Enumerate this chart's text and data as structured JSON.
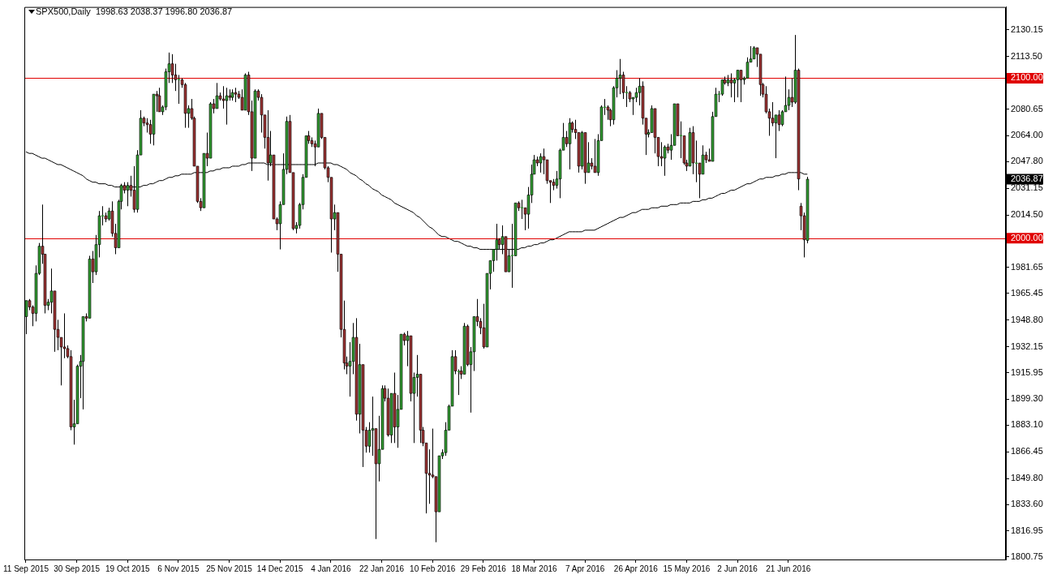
{
  "chart_data": {
    "type": "candlestick",
    "title": "SPX500,Daily  1998.63 2038.37 1996.80 2036.87",
    "categories": [
      "11 Sep 2015",
      null,
      null,
      null,
      null,
      null,
      null,
      null,
      null,
      null,
      null,
      null,
      null,
      null,
      null,
      null,
      "30 Sep 2015",
      null,
      null,
      null,
      null,
      null,
      null,
      null,
      null,
      null,
      null,
      null,
      null,
      null,
      null,
      null,
      "19 Oct 2015",
      null,
      null,
      null,
      null,
      null,
      null,
      null,
      null,
      null,
      null,
      null,
      null,
      null,
      null,
      null,
      "6 Nov 2015",
      null,
      null,
      null,
      null,
      null,
      null,
      null,
      null,
      null,
      null,
      null,
      null,
      null,
      null,
      null,
      "25 Nov 2015",
      null,
      null,
      null,
      null,
      null,
      null,
      null,
      null,
      null,
      null,
      null,
      null,
      null,
      null,
      null,
      "14 Dec 2015",
      null,
      null,
      null,
      null,
      null,
      null,
      null,
      null,
      null,
      null,
      null,
      null,
      null,
      null,
      null,
      "4 Jan 2016",
      null,
      null,
      null,
      null,
      null,
      null,
      null,
      null,
      null,
      null,
      null,
      null,
      null,
      null,
      null,
      "22 Jan 2016",
      null,
      null,
      null,
      null,
      null,
      null,
      null,
      null,
      null,
      null,
      null,
      null,
      null,
      null,
      null,
      "10 Feb 2016",
      null,
      null,
      null,
      null,
      null,
      null,
      null,
      null,
      null,
      null,
      null,
      null,
      null,
      null,
      null,
      "29 Feb 2016",
      null,
      null,
      null,
      null,
      null,
      null,
      null,
      null,
      null,
      null,
      null,
      null,
      null,
      null,
      null,
      "18 Mar 2016",
      null,
      null,
      null,
      null,
      null,
      null,
      null,
      null,
      null,
      null,
      null,
      null,
      null,
      null,
      null,
      "7 Apr 2016",
      null,
      null,
      null,
      null,
      null,
      null,
      null,
      null,
      null,
      null,
      null,
      null,
      null,
      null,
      null,
      "26 Apr 2016",
      null,
      null,
      null,
      null,
      null,
      null,
      null,
      null,
      null,
      null,
      null,
      null,
      null,
      null,
      null,
      "15 May 2016",
      null,
      null,
      null,
      null,
      null,
      null,
      null,
      null,
      null,
      null,
      null,
      null,
      null,
      null,
      null,
      "2 Jun 2016",
      null,
      null,
      null,
      null,
      null,
      null,
      null,
      null,
      null,
      null,
      null,
      null,
      null,
      null,
      null,
      "21 Jun 2016",
      null,
      null,
      null,
      null,
      null,
      null
    ],
    "ohlc": [
      [
        1951,
        1961,
        1940,
        1961
      ],
      [
        1961,
        1962,
        1955,
        1957
      ],
      [
        1957,
        1958,
        1945,
        1953
      ],
      [
        1953,
        1983,
        1948,
        1978
      ],
      [
        1978,
        1997,
        1977,
        1995
      ],
      [
        1995,
        2021,
        1984,
        1990
      ],
      [
        1990,
        1990,
        1953,
        1958
      ],
      [
        1958,
        1962,
        1955,
        1960
      ],
      [
        1960,
        1981,
        1953,
        1967
      ],
      [
        1967,
        1967,
        1929,
        1943
      ],
      [
        1943,
        1949,
        1930,
        1938
      ],
      [
        1938,
        1938,
        1908,
        1932
      ],
      [
        1932,
        1953,
        1925,
        1931
      ],
      [
        1931,
        1933,
        1925,
        1926
      ],
      [
        1926,
        1930,
        1880,
        1882
      ],
      [
        1882,
        1899,
        1871,
        1884
      ],
      [
        1884,
        1921,
        1884,
        1920
      ],
      [
        1920,
        1927,
        1900,
        1923
      ],
      [
        1923,
        1951,
        1893,
        1951
      ],
      [
        1951,
        1953,
        1948,
        1950
      ],
      [
        1950,
        1989,
        1950,
        1987
      ],
      [
        1987,
        1992,
        1972,
        1979
      ],
      [
        1979,
        2002,
        1977,
        1996
      ],
      [
        1996,
        2017,
        1988,
        2014
      ],
      [
        2014,
        2020,
        2008,
        2014
      ],
      [
        2014,
        2016,
        2010,
        2012
      ],
      [
        2012,
        2019,
        2011,
        2017
      ],
      [
        2017,
        2023,
        2001,
        2003
      ],
      [
        2003,
        2009,
        1990,
        1994
      ],
      [
        1994,
        2024,
        1994,
        2023
      ],
      [
        2023,
        2034,
        2018,
        2033
      ],
      [
        2033,
        2035,
        2028,
        2030
      ],
      [
        2030,
        2035,
        2020,
        2033
      ],
      [
        2033,
        2039,
        2026,
        2030
      ],
      [
        2030,
        2045,
        2016,
        2018
      ],
      [
        2018,
        2055,
        2016,
        2052
      ],
      [
        2052,
        2080,
        2052,
        2075
      ],
      [
        2075,
        2076,
        2070,
        2072
      ],
      [
        2072,
        2075,
        2066,
        2071
      ],
      [
        2071,
        2074,
        2059,
        2065
      ],
      [
        2065,
        2090,
        2058,
        2090
      ],
      [
        2090,
        2092,
        2079,
        2089
      ],
      [
        2089,
        2094,
        2079,
        2079
      ],
      [
        2079,
        2083,
        2077,
        2082
      ],
      [
        2082,
        2106,
        2080,
        2104
      ],
      [
        2104,
        2116,
        2097,
        2109
      ],
      [
        2109,
        2115,
        2097,
        2102
      ],
      [
        2102,
        2109,
        2092,
        2099
      ],
      [
        2099,
        2102,
        2084,
        2099
      ],
      [
        2099,
        2100,
        2094,
        2096
      ],
      [
        2096,
        2097,
        2069,
        2078
      ],
      [
        2078,
        2083,
        2069,
        2081
      ],
      [
        2081,
        2087,
        2074,
        2075
      ],
      [
        2075,
        2076,
        2045,
        2045
      ],
      [
        2045,
        2045,
        2022,
        2023
      ],
      [
        2023,
        2025,
        2017,
        2019
      ],
      [
        2019,
        2053,
        2019,
        2053
      ],
      [
        2053,
        2066,
        2045,
        2050
      ],
      [
        2050,
        2085,
        2050,
        2084
      ],
      [
        2084,
        2087,
        2078,
        2081
      ],
      [
        2081,
        2097,
        2081,
        2089
      ],
      [
        2089,
        2091,
        2086,
        2087
      ],
      [
        2087,
        2095,
        2081,
        2086
      ],
      [
        2086,
        2094,
        2071,
        2089
      ],
      [
        2089,
        2093,
        2086,
        2088
      ],
      [
        2088,
        2093,
        2086,
        2091
      ],
      [
        2091,
        2094,
        2085,
        2090
      ],
      [
        2090,
        2092,
        2087,
        2088
      ],
      [
        2088,
        2093,
        2080,
        2080
      ],
      [
        2080,
        2103,
        2080,
        2102
      ],
      [
        2102,
        2104,
        2077,
        2079
      ],
      [
        2079,
        2086,
        2042,
        2050
      ],
      [
        2050,
        2093,
        2050,
        2092
      ],
      [
        2092,
        2093,
        2086,
        2088
      ],
      [
        2088,
        2090,
        2066,
        2077
      ],
      [
        2077,
        2077,
        2056,
        2063
      ],
      [
        2063,
        2080,
        2036,
        2047
      ],
      [
        2047,
        2067,
        2045,
        2052
      ],
      [
        2052,
        2052,
        2012,
        2012
      ],
      [
        2012,
        2013,
        2005,
        2009
      ],
      [
        2009,
        2023,
        1993,
        2021
      ],
      [
        2021,
        2053,
        2021,
        2043
      ],
      [
        2043,
        2076,
        2040,
        2073
      ],
      [
        2073,
        2077,
        2041,
        2041
      ],
      [
        2041,
        2041,
        2005,
        2006
      ],
      [
        2006,
        2010,
        2003,
        2008
      ],
      [
        2008,
        2022,
        2006,
        2021
      ],
      [
        2021,
        2040,
        2018,
        2038
      ],
      [
        2038,
        2064,
        2038,
        2064
      ],
      [
        2064,
        2067,
        2059,
        2061
      ],
      [
        2061,
        2063,
        2057,
        2059
      ],
      [
        2059,
        2061,
        2045,
        2057
      ],
      [
        2057,
        2081,
        2057,
        2078
      ],
      [
        2078,
        2078,
        2062,
        2063
      ],
      [
        2063,
        2063,
        2043,
        2044
      ],
      [
        2044,
        2045,
        2035,
        2038
      ],
      [
        2038,
        2038,
        1991,
        2012
      ],
      [
        2012,
        2021,
        2005,
        2016
      ],
      [
        2016,
        2016,
        1979,
        1990
      ],
      [
        1990,
        1990,
        1938,
        1943
      ],
      [
        1943,
        1961,
        1918,
        1922
      ],
      [
        1922,
        1926,
        1915,
        1920
      ],
      [
        1920,
        1935,
        1901,
        1923
      ],
      [
        1923,
        1947,
        1915,
        1938
      ],
      [
        1938,
        1950,
        1886,
        1890
      ],
      [
        1890,
        1934,
        1878,
        1921
      ],
      [
        1921,
        1921,
        1857,
        1880
      ],
      [
        1880,
        1882,
        1866,
        1870
      ],
      [
        1870,
        1885,
        1866,
        1880
      ],
      [
        1880,
        1901,
        1864,
        1881
      ],
      [
        1881,
        1881,
        1812,
        1859
      ],
      [
        1859,
        1889,
        1848,
        1868
      ],
      [
        1868,
        1908,
        1868,
        1906
      ],
      [
        1906,
        1908,
        1898,
        1900
      ],
      [
        1900,
        1906,
        1876,
        1877
      ],
      [
        1877,
        1903,
        1872,
        1903
      ],
      [
        1903,
        1916,
        1872,
        1882
      ],
      [
        1882,
        1902,
        1869,
        1893
      ],
      [
        1893,
        1940,
        1893,
        1940
      ],
      [
        1940,
        1941,
        1933,
        1936
      ],
      [
        1936,
        1942,
        1920,
        1939
      ],
      [
        1939,
        1939,
        1898,
        1903
      ],
      [
        1903,
        1916,
        1872,
        1913
      ],
      [
        1913,
        1927,
        1901,
        1915
      ],
      [
        1915,
        1915,
        1872,
        1880
      ],
      [
        1880,
        1882,
        1870,
        1872
      ],
      [
        1872,
        1872,
        1828,
        1853
      ],
      [
        1853,
        1868,
        1834,
        1852
      ],
      [
        1852,
        1881,
        1850,
        1851
      ],
      [
        1851,
        1851,
        1810,
        1829
      ],
      [
        1829,
        1864,
        1829,
        1864
      ],
      [
        1864,
        1868,
        1862,
        1866
      ],
      [
        1866,
        1885,
        1864,
        1880
      ],
      [
        1880,
        1896,
        1880,
        1895
      ],
      [
        1895,
        1930,
        1895,
        1926
      ],
      [
        1926,
        1930,
        1915,
        1917
      ],
      [
        1917,
        1918,
        1902,
        1917
      ],
      [
        1917,
        1920,
        1912,
        1915
      ],
      [
        1915,
        1947,
        1915,
        1945
      ],
      [
        1945,
        1946,
        1920,
        1921
      ],
      [
        1921,
        1932,
        1891,
        1929
      ],
      [
        1929,
        1951,
        1917,
        1951
      ],
      [
        1951,
        1962,
        1945,
        1948
      ],
      [
        1948,
        1950,
        1940,
        1944
      ],
      [
        1944,
        1959,
        1931,
        1932
      ],
      [
        1932,
        1978,
        1932,
        1978
      ],
      [
        1978,
        1986,
        1968,
        1986
      ],
      [
        1986,
        1993,
        1979,
        1993
      ],
      [
        1993,
        2009,
        1986,
        1999
      ],
      [
        1999,
        2000,
        1993,
        1996
      ],
      [
        1996,
        2008,
        1990,
        2001
      ],
      [
        2001,
        2001,
        1979,
        1979
      ],
      [
        1979,
        1993,
        1979,
        1989
      ],
      [
        1989,
        2009,
        1969,
        1989
      ],
      [
        1989,
        2022,
        1989,
        2022
      ],
      [
        2022,
        2023,
        2017,
        2019
      ],
      [
        2019,
        2024,
        2012,
        2019
      ],
      [
        2019,
        2019,
        2005,
        2015
      ],
      [
        2015,
        2032,
        2006,
        2027
      ],
      [
        2027,
        2046,
        2022,
        2040
      ],
      [
        2040,
        2052,
        2040,
        2049
      ],
      [
        2049,
        2051,
        2045,
        2047
      ],
      [
        2047,
        2053,
        2041,
        2051
      ],
      [
        2051,
        2056,
        2040,
        2049
      ],
      [
        2049,
        2049,
        2034,
        2036
      ],
      [
        2036,
        2036,
        2022,
        2035
      ],
      [
        2035,
        2037,
        2030,
        2033
      ],
      [
        2033,
        2042,
        2031,
        2037
      ],
      [
        2037,
        2056,
        2025,
        2055
      ],
      [
        2055,
        2072,
        2055,
        2063
      ],
      [
        2063,
        2067,
        2057,
        2059
      ],
      [
        2059,
        2075,
        2043,
        2072
      ],
      [
        2072,
        2073,
        2066,
        2068
      ],
      [
        2068,
        2074,
        2062,
        2066
      ],
      [
        2066,
        2066,
        2041,
        2045
      ],
      [
        2045,
        2067,
        2043,
        2066
      ],
      [
        2066,
        2066,
        2034,
        2041
      ],
      [
        2041,
        2060,
        2041,
        2047
      ],
      [
        2047,
        2050,
        2043,
        2045
      ],
      [
        2045,
        2062,
        2041,
        2041
      ],
      [
        2041,
        2065,
        2039,
        2061
      ],
      [
        2061,
        2083,
        2061,
        2082
      ],
      [
        2082,
        2087,
        2077,
        2082
      ],
      [
        2082,
        2083,
        2074,
        2080
      ],
      [
        2080,
        2081,
        2070,
        2074
      ],
      [
        2074,
        2095,
        2071,
        2094
      ],
      [
        2094,
        2105,
        2088,
        2100
      ],
      [
        2100,
        2112,
        2090,
        2102
      ],
      [
        2102,
        2104,
        2087,
        2091
      ],
      [
        2091,
        2095,
        2082,
        2091
      ],
      [
        2091,
        2092,
        2085,
        2087
      ],
      [
        2087,
        2088,
        2077,
        2088
      ],
      [
        2088,
        2094,
        2085,
        2091
      ],
      [
        2091,
        2100,
        2083,
        2095
      ],
      [
        2095,
        2098,
        2071,
        2075
      ],
      [
        2075,
        2075,
        2052,
        2065
      ],
      [
        2065,
        2068,
        2063,
        2066
      ],
      [
        2066,
        2083,
        2066,
        2081
      ],
      [
        2081,
        2081,
        2053,
        2063
      ],
      [
        2063,
        2063,
        2045,
        2051
      ],
      [
        2051,
        2060,
        2045,
        2050
      ],
      [
        2050,
        2058,
        2039,
        2057
      ],
      [
        2057,
        2059,
        2053,
        2055
      ],
      [
        2055,
        2065,
        2049,
        2058
      ],
      [
        2058,
        2084,
        2058,
        2084
      ],
      [
        2084,
        2084,
        2064,
        2064
      ],
      [
        2064,
        2073,
        2050,
        2064
      ],
      [
        2064,
        2064,
        2046,
        2047
      ],
      [
        2047,
        2049,
        2042,
        2045
      ],
      [
        2045,
        2069,
        2045,
        2066
      ],
      [
        2066,
        2070,
        2040,
        2047
      ],
      [
        2047,
        2061,
        2035,
        2047
      ],
      [
        2047,
        2047,
        2025,
        2040
      ],
      [
        2040,
        2058,
        2040,
        2052
      ],
      [
        2052,
        2054,
        2047,
        2049
      ],
      [
        2049,
        2056,
        2048,
        2048
      ],
      [
        2048,
        2079,
        2048,
        2076
      ],
      [
        2076,
        2094,
        2076,
        2090
      ],
      [
        2090,
        2092,
        2085,
        2090
      ],
      [
        2090,
        2099,
        2089,
        2099
      ],
      [
        2099,
        2101,
        2096,
        2097
      ],
      [
        2097,
        2102,
        2095,
        2099
      ],
      [
        2099,
        2103,
        2088,
        2097
      ],
      [
        2097,
        2100,
        2085,
        2099
      ],
      [
        2099,
        2105,
        2088,
        2105
      ],
      [
        2105,
        2105,
        2085,
        2099
      ],
      [
        2099,
        2101,
        2096,
        2100
      ],
      [
        2100,
        2113,
        2100,
        2110
      ],
      [
        2110,
        2120,
        2110,
        2112
      ],
      [
        2112,
        2120,
        2112,
        2119
      ],
      [
        2119,
        2119,
        2107,
        2115
      ],
      [
        2115,
        2115,
        2089,
        2096
      ],
      [
        2096,
        2097,
        2088,
        2090
      ],
      [
        2090,
        2095,
        2078,
        2079
      ],
      [
        2079,
        2081,
        2064,
        2075
      ],
      [
        2075,
        2085,
        2070,
        2072
      ],
      [
        2072,
        2077,
        2050,
        2077
      ],
      [
        2077,
        2080,
        2067,
        2071
      ],
      [
        2071,
        2080,
        2070,
        2079
      ],
      [
        2079,
        2101,
        2079,
        2083
      ],
      [
        2083,
        2093,
        2080,
        2088
      ],
      [
        2088,
        2100,
        2082,
        2085
      ],
      [
        2085,
        2127,
        2084,
        2105
      ],
      [
        2105,
        2106,
        2030,
        2037
      ],
      [
        2020,
        2022,
        2005,
        2014
      ],
      [
        2014,
        2016,
        1988,
        1999
      ],
      [
        1998.63,
        2038.37,
        1996.8,
        2036.87
      ]
    ],
    "colors": [
      "#339933",
      "#993333",
      "#993333",
      "#339933",
      "#339933",
      "#993333",
      "#993333",
      "#339933",
      "#339933",
      "#993333",
      "#993333",
      "#993333",
      "#993333",
      "#993333",
      "#993333",
      "#339933",
      "#339933",
      "#339933",
      "#339933",
      "#993333",
      "#339933",
      "#993333",
      "#339933",
      "#339933",
      "#339933",
      "#993333",
      "#339933",
      "#993333",
      "#993333",
      "#339933",
      "#339933",
      "#993333",
      "#339933",
      "#993333",
      "#993333",
      "#339933",
      "#339933",
      "#993333",
      "#993333",
      "#993333",
      "#339933",
      "#993333",
      "#993333",
      "#339933",
      "#339933",
      "#339933",
      "#993333",
      "#993333",
      "#339933",
      "#993333",
      "#993333",
      "#339933",
      "#993333",
      "#993333",
      "#993333",
      "#993333",
      "#339933",
      "#993333",
      "#339933",
      "#993333",
      "#339933",
      "#993333",
      "#993333",
      "#339933",
      "#993333",
      "#339933",
      "#993333",
      "#993333",
      "#993333",
      "#339933",
      "#993333",
      "#993333",
      "#339933",
      "#993333",
      "#993333",
      "#993333",
      "#993333",
      "#339933",
      "#993333",
      "#993333",
      "#339933",
      "#339933",
      "#339933",
      "#993333",
      "#993333",
      "#339933",
      "#339933",
      "#339933",
      "#339933",
      "#993333",
      "#993333",
      "#993333",
      "#339933",
      "#993333",
      "#993333",
      "#993333",
      "#993333",
      "#339933",
      "#993333",
      "#993333",
      "#993333",
      "#993333",
      "#339933",
      "#339933",
      "#993333",
      "#339933",
      "#993333",
      "#993333",
      "#339933",
      "#339933",
      "#993333",
      "#339933",
      "#339933",
      "#993333",
      "#993333",
      "#339933",
      "#993333",
      "#339933",
      "#339933",
      "#993333",
      "#339933",
      "#993333",
      "#339933",
      "#339933",
      "#993333",
      "#993333",
      "#993333",
      "#993333",
      "#993333",
      "#993333",
      "#339933",
      "#339933",
      "#339933",
      "#339933",
      "#339933",
      "#993333",
      "#339933",
      "#993333",
      "#339933",
      "#993333",
      "#339933",
      "#339933",
      "#993333",
      "#993333",
      "#993333",
      "#339933",
      "#339933",
      "#339933",
      "#339933",
      "#993333",
      "#339933",
      "#993333",
      "#339933",
      "#339933",
      "#339933",
      "#993333",
      "#339933",
      "#993333",
      "#339933",
      "#339933",
      "#339933",
      "#993333",
      "#339933",
      "#993333",
      "#993333",
      "#993333",
      "#993333",
      "#339933",
      "#339933",
      "#339933",
      "#993333",
      "#339933",
      "#993333",
      "#993333",
      "#993333",
      "#339933",
      "#993333",
      "#339933",
      "#993333",
      "#993333",
      "#339933",
      "#339933",
      "#339933",
      "#993333",
      "#993333",
      "#339933",
      "#339933",
      "#339933",
      "#993333",
      "#339933",
      "#993333",
      "#339933",
      "#339933",
      "#339933",
      "#993333",
      "#993333",
      "#339933",
      "#339933",
      "#993333",
      "#993333",
      "#993333",
      "#339933",
      "#993333",
      "#339933",
      "#339933",
      "#993333",
      "#339933",
      "#993333",
      "#993333",
      "#339933",
      "#993333",
      "#339933",
      "#993333",
      "#339933",
      "#993333",
      "#993333",
      "#339933",
      "#339933",
      "#339933",
      "#339933",
      "#993333",
      "#339933",
      "#993333",
      "#339933",
      "#339933",
      "#993333",
      "#339933",
      "#339933",
      "#339933",
      "#339933",
      "#993333",
      "#993333",
      "#993333",
      "#993333",
      "#993333",
      "#993333",
      "#339933",
      "#993333",
      "#339933",
      "#339933",
      "#339933",
      "#993333",
      "#339933",
      "#993333",
      "#993333",
      "#993333",
      "#339933"
    ],
    "series": [
      {
        "type": "line",
        "color": "#000000",
        "values": [
          2054,
          2053,
          2053,
          2052,
          2051,
          2050,
          2050,
          2049,
          2048,
          2047,
          2046,
          2046,
          2045,
          2044,
          2043,
          2042,
          2041,
          2040,
          2039,
          2037,
          2036,
          2035,
          2035,
          2034,
          2034,
          2034,
          2033,
          2033,
          2032,
          2032,
          2032,
          2032,
          2032,
          2032,
          2032,
          2032,
          2032,
          2033,
          2033,
          2034,
          2034,
          2035,
          2036,
          2036,
          2037,
          2038,
          2038,
          2039,
          2039,
          2040,
          2040,
          2040,
          2040,
          2041,
          2041,
          2041,
          2041,
          2041,
          2042,
          2042,
          2043,
          2043,
          2044,
          2044,
          2044,
          2045,
          2045,
          2045,
          2046,
          2046,
          2047,
          2047,
          2047,
          2047,
          2047,
          2047,
          2046,
          2046,
          2046,
          2046,
          2046,
          2046,
          2046,
          2046,
          2046,
          2046,
          2046,
          2046,
          2046,
          2046,
          2046,
          2046,
          2047,
          2047,
          2047,
          2047,
          2047,
          2046,
          2046,
          2045,
          2044,
          2043,
          2041,
          2040,
          2039,
          2037,
          2036,
          2034,
          2033,
          2031,
          2030,
          2029,
          2027,
          2026,
          2025,
          2024,
          2022,
          2021,
          2020,
          2019,
          2018,
          2017,
          2016,
          2014,
          2013,
          2011,
          2009,
          2007,
          2006,
          2004,
          2002,
          2001,
          2001,
          2000,
          1999,
          1998,
          1998,
          1997,
          1996,
          1995,
          1995,
          1994,
          1994,
          1993,
          1993,
          1993,
          1993,
          1993,
          1993,
          1993,
          1993,
          1993,
          1993,
          1993,
          1993,
          1993,
          1994,
          1994,
          1995,
          1995,
          1996,
          1996,
          1997,
          1997,
          1998,
          1999,
          1999,
          2000,
          2001,
          2002,
          2003,
          2004,
          2004,
          2004,
          2004,
          2004,
          2005,
          2005,
          2005,
          2005,
          2006,
          2007,
          2008,
          2009,
          2010,
          2011,
          2012,
          2013,
          2013,
          2014,
          2015,
          2016,
          2016,
          2017,
          2018,
          2018,
          2018,
          2019,
          2019,
          2019,
          2020,
          2020,
          2020,
          2021,
          2021,
          2021,
          2022,
          2022,
          2022,
          2022,
          2023,
          2023,
          2023,
          2024,
          2024,
          2025,
          2025,
          2026,
          2027,
          2028,
          2028,
          2029,
          2030,
          2030,
          2031,
          2032,
          2033,
          2034,
          2034,
          2035,
          2036,
          2037,
          2037,
          2038,
          2038,
          2038,
          2039,
          2039,
          2040,
          2040,
          2041,
          2041,
          2041,
          2041,
          2041,
          2040,
          2040
        ]
      }
    ],
    "ylim": [
      1799.2,
      2144.5
    ],
    "yticks": [
      {
        "value": 1800.75,
        "label": "1800.75"
      },
      {
        "value": 1816.95,
        "label": "1816.95"
      },
      {
        "value": 1833.6,
        "label": "1833.60"
      },
      {
        "value": 1849.8,
        "label": "1849.80"
      },
      {
        "value": 1866.45,
        "label": "1866.45"
      },
      {
        "value": 1883.1,
        "label": "1883.10"
      },
      {
        "value": 1899.3,
        "label": "1899.30"
      },
      {
        "value": 1915.95,
        "label": "1915.95"
      },
      {
        "value": 1932.15,
        "label": "1932.15"
      },
      {
        "value": 1948.8,
        "label": "1948.80"
      },
      {
        "value": 1965.45,
        "label": "1965.45"
      },
      {
        "value": 1981.65,
        "label": "1981.65"
      },
      {
        "value": 2014.5,
        "label": "2014.50"
      },
      {
        "value": 2031.15,
        "label": "2031.15"
      },
      {
        "value": 2047.8,
        "label": "2047.80"
      },
      {
        "value": 2064,
        "label": "2064.00"
      },
      {
        "value": 2080.65,
        "label": "2080.65"
      },
      {
        "value": 2113.5,
        "label": "2113.50"
      },
      {
        "value": 2130.15,
        "label": "2130.15"
      }
    ],
    "ref_lines": [
      {
        "axis": "y",
        "value": 2100,
        "label": "2100.00",
        "color": "#e00000"
      },
      {
        "axis": "y",
        "value": 2000,
        "label": "2000.00",
        "color": "#e00000"
      }
    ],
    "annotations": [
      "2036.87"
    ]
  }
}
